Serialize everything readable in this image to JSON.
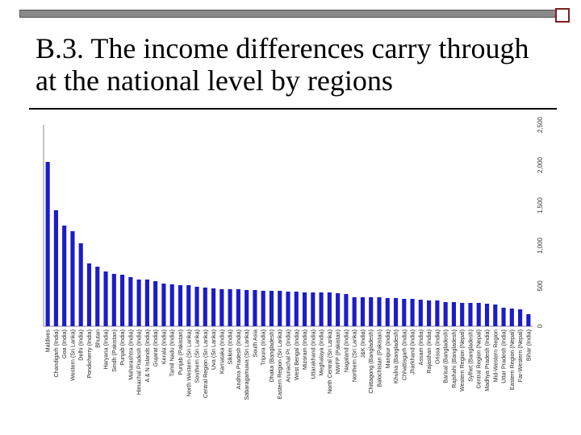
{
  "slide": {
    "title": "B.3. The income differences carry through at the national level by regions"
  },
  "chart_data": {
    "type": "bar",
    "title": "",
    "xlabel": "",
    "ylabel": "",
    "ylim": [
      0,
      2500
    ],
    "grid": false,
    "bar_color": "#1c1cc8",
    "yticks": [
      0,
      500,
      1000,
      1500,
      2000,
      2500
    ],
    "y_axis_side": "right",
    "categories": [
      "Maldives",
      "Chandigarh (India)",
      "Goa (India)",
      "Western (Sri Lanka)",
      "Delhi (India)",
      "Pondicherry (India)",
      "Bhutan",
      "Haryana (India)",
      "Sindh (Pakistan)",
      "Punjab (India)",
      "Maharashtra (India)",
      "Himachal Pradesh (India)",
      "A & N Islands (India)",
      "Gujarat (India)",
      "Kerala (India)",
      "Tamil Nadu (India)",
      "Punjab (Pakistan)",
      "North Western (Sri Lanka)",
      "Southern (Sri Lanka)",
      "Central Region (Sri Lanka)",
      "Uva (Sri Lanka)",
      "Karnataka (India)",
      "Sikkim (India)",
      "Andhra Pradesh (India)",
      "Sabaragamuwa (Sri Lanka)",
      "South Asia",
      "Tripura (India)",
      "Dhaka (Bangladesh)",
      "Eastern Region (Sri Lanka)",
      "Arunachal Pr. (India)",
      "West Bengal (India)",
      "Mizoram (India)",
      "Uttarakhand (India)",
      "Meghalaya (India)",
      "North Central (Sri Lanka)",
      "NWFP (Pakistan)",
      "Nagaland (India)",
      "Northern (Sri Lanka)",
      "J&K (India)",
      "Chittagong (Bangladesh)",
      "Balochistan (Pakistan)",
      "Manipur (India)",
      "Khulna (Bangladesh)",
      "Chhattisgarh (India)",
      "Jharkhand (India)",
      "Assam (India)",
      "Rajasthan (India)",
      "Orissa (India)",
      "Barisal (Bangladesh)",
      "Rajshahi (Bangladesh)",
      "Western Region (Nepal)",
      "Sylhet (Bangladesh)",
      "Central Region (Nepal)",
      "Madhya Pradesh (India)",
      "Mid-Western Region",
      "Uttar Pradesh (India)",
      "Eastern Region (Nepal)",
      "Far-Western (Nepal)",
      "Bihar (India)"
    ],
    "values": [
      2040,
      1440,
      1250,
      1180,
      1030,
      780,
      740,
      680,
      650,
      640,
      610,
      580,
      580,
      560,
      530,
      520,
      510,
      510,
      490,
      480,
      470,
      460,
      460,
      460,
      450,
      450,
      440,
      440,
      440,
      430,
      430,
      420,
      420,
      420,
      420,
      410,
      400,
      360,
      360,
      360,
      360,
      350,
      350,
      340,
      340,
      330,
      320,
      320,
      300,
      300,
      290,
      290,
      290,
      280,
      270,
      230,
      220,
      210,
      150
    ]
  }
}
